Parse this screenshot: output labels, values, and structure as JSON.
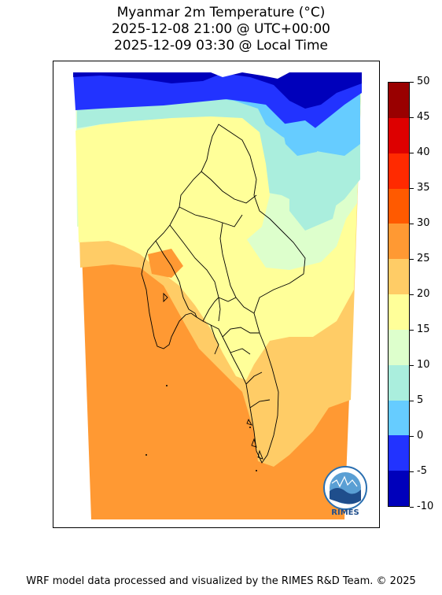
{
  "title": {
    "line1": "Myanmar 2m Temperature (°C)",
    "line2": "2025-12-08 21:00 @ UTC+00:00",
    "line3": "2025-12-09 03:30 @ Local Time"
  },
  "colorbar": {
    "ticks": [
      "50",
      "45",
      "40",
      "35",
      "30",
      "25",
      "20",
      "15",
      "10",
      "5",
      "0",
      "-5",
      "-10"
    ],
    "colors": [
      "#990000",
      "#dd0000",
      "#ff2a00",
      "#ff5a00",
      "#ff9933",
      "#ffcc66",
      "#ffff99",
      "#ddffcc",
      "#aaeedd",
      "#66ccff",
      "#2233ff",
      "#0000bb"
    ]
  },
  "logo": {
    "text": "RIMES"
  },
  "footer": "WRF model data processed and visualized by the RIMES R&D Team. © 2025"
}
